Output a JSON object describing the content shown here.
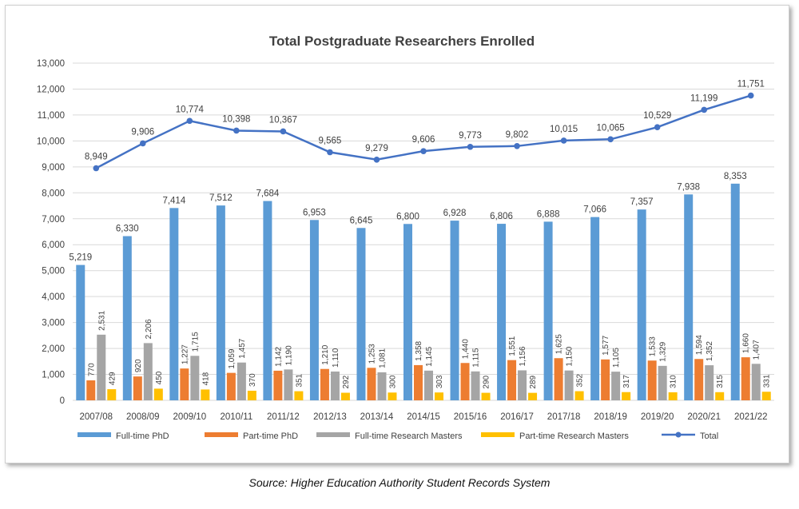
{
  "chart_data": {
    "type": "bar",
    "title": "Total Postgraduate Researchers Enrolled",
    "categories": [
      "2007/08",
      "2008/09",
      "2009/10",
      "2010/11",
      "2011/12",
      "2012/13",
      "2013/14",
      "2014/15",
      "2015/16",
      "2016/17",
      "2017/18",
      "2018/19",
      "2019/20",
      "2020/21",
      "2021/22"
    ],
    "ylim": [
      0,
      13000
    ],
    "yticks": [
      0,
      1000,
      2000,
      3000,
      4000,
      5000,
      6000,
      7000,
      8000,
      9000,
      10000,
      11000,
      12000,
      13000
    ],
    "ytick_labels": [
      "0",
      "1,000",
      "2,000",
      "3,000",
      "4,000",
      "5,000",
      "6,000",
      "7,000",
      "8,000",
      "9,000",
      "10,000",
      "11,000",
      "12,000",
      "13,000"
    ],
    "grid": true,
    "legend_position": "bottom",
    "series": [
      {
        "name": "Full-time PhD",
        "kind": "bar",
        "color": "#5b9bd5",
        "values": [
          5219,
          6330,
          7414,
          7512,
          7684,
          6953,
          6645,
          6800,
          6928,
          6806,
          6888,
          7066,
          7357,
          7938,
          8353
        ],
        "labels": [
          "5,219",
          "6,330",
          "7,414",
          "7,512",
          "7,684",
          "6,953",
          "6,645",
          "6,800",
          "6,928",
          "6,806",
          "6,888",
          "7,066",
          "7,357",
          "7,938",
          "8,353"
        ]
      },
      {
        "name": "Part-time PhD",
        "kind": "bar",
        "color": "#ed7d31",
        "values": [
          770,
          920,
          1227,
          1059,
          1142,
          1210,
          1253,
          1358,
          1440,
          1551,
          1625,
          1577,
          1533,
          1594,
          1660
        ],
        "labels": [
          "770",
          "920",
          "1,227",
          "1,059",
          "1,142",
          "1,210",
          "1,253",
          "1,358",
          "1,440",
          "1,551",
          "1,625",
          "1,577",
          "1,533",
          "1,594",
          "1,660"
        ]
      },
      {
        "name": "Full-time Research Masters",
        "kind": "bar",
        "color": "#a5a5a5",
        "values": [
          2531,
          2206,
          1715,
          1457,
          1190,
          1110,
          1081,
          1145,
          1115,
          1156,
          1150,
          1105,
          1329,
          1352,
          1407
        ],
        "labels": [
          "2,531",
          "2,206",
          "1,715",
          "1,457",
          "1,190",
          "1,110",
          "1,081",
          "1,145",
          "1,115",
          "1,156",
          "1,150",
          "1,105",
          "1,329",
          "1,352",
          "1,407"
        ]
      },
      {
        "name": "Part-time Research Masters",
        "kind": "bar",
        "color": "#ffc000",
        "values": [
          429,
          450,
          418,
          370,
          351,
          292,
          300,
          303,
          290,
          289,
          352,
          317,
          310,
          315,
          331
        ],
        "labels": [
          "429",
          "450",
          "418",
          "370",
          "351",
          "292",
          "300",
          "303",
          "290",
          "289",
          "352",
          "317",
          "310",
          "315",
          "331"
        ]
      },
      {
        "name": "Total",
        "kind": "line",
        "color": "#4472c4",
        "values": [
          8949,
          9906,
          10774,
          10398,
          10367,
          9565,
          9279,
          9606,
          9773,
          9802,
          10015,
          10065,
          10529,
          11199,
          11751
        ],
        "labels": [
          "8,949",
          "9,906",
          "10,774",
          "10,398",
          "10,367",
          "9,565",
          "9,279",
          "9,606",
          "9,773",
          "9,802",
          "10,015",
          "10,065",
          "10,529",
          "11,199",
          "11,751"
        ]
      }
    ]
  },
  "source": "Source: Higher Education Authority Student Records System"
}
